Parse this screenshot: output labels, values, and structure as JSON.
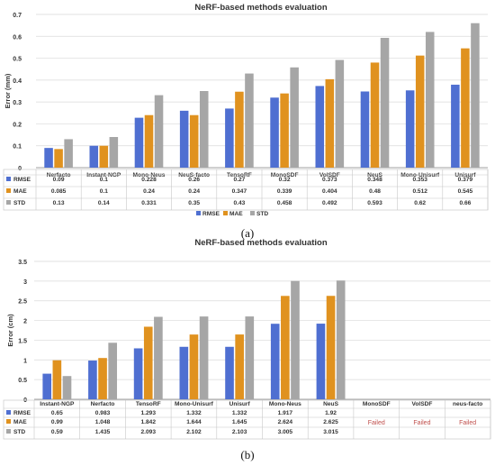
{
  "colors": {
    "RMSE": "#4f6fd1",
    "MAE": "#e0921f",
    "STD": "#a6a6a6",
    "failed": "#c0504d",
    "grid": "#d9d9d9",
    "axis": "#808080"
  },
  "captions": {
    "a": "(a)",
    "b": "(b)"
  },
  "chart_data": [
    {
      "type": "bar",
      "title": "NeRF-based methods evaluation",
      "ylabel": "Error (mm)",
      "ylim": [
        0,
        0.7
      ],
      "yticks": [
        "0",
        "0.1",
        "0.2",
        "0.3",
        "0.4",
        "0.5",
        "0.6",
        "0.7"
      ],
      "grid": true,
      "legend": "bottom",
      "categories": [
        "Nerfacto",
        "Instant-NGP",
        "Mono-Neus",
        "NeuS-facto",
        "TensoRF",
        "MonoSDF",
        "VolSDF",
        "NeuS",
        "Mono-Unisurf",
        "Unisurf"
      ],
      "series": [
        {
          "name": "RMSE",
          "values": [
            0.09,
            0.1,
            0.228,
            0.26,
            0.27,
            0.32,
            0.373,
            0.348,
            0.353,
            0.379
          ],
          "labels": [
            "0.09",
            "0.1",
            "0.228",
            "0.26",
            "0.27",
            "0.32",
            "0.373",
            "0.348",
            "0.353",
            "0.379"
          ]
        },
        {
          "name": "MAE",
          "values": [
            0.085,
            0.1,
            0.24,
            0.24,
            0.347,
            0.339,
            0.404,
            0.48,
            0.512,
            0.545
          ],
          "labels": [
            "0.085",
            "0.1",
            "0.24",
            "0.24",
            "0.347",
            "0.339",
            "0.404",
            "0.48",
            "0.512",
            "0.545"
          ]
        },
        {
          "name": "STD",
          "values": [
            0.13,
            0.14,
            0.331,
            0.35,
            0.43,
            0.458,
            0.492,
            0.593,
            0.62,
            0.66
          ],
          "labels": [
            "0.13",
            "0.14",
            "0.331",
            "0.35",
            "0.43",
            "0.458",
            "0.492",
            "0.593",
            "0.62",
            "0.66"
          ]
        }
      ]
    },
    {
      "type": "bar",
      "title": "NeRF-based methods evaluation",
      "ylabel": "Error (cm)",
      "ylim": [
        0,
        3.5
      ],
      "yticks": [
        "0",
        "0.5",
        "1",
        "1.5",
        "2",
        "2.5",
        "3",
        "3.5"
      ],
      "grid": true,
      "legend": "table",
      "failed_text": "Failed",
      "categories": [
        "Instant-NGP",
        "Nerfacto",
        "TensoRF",
        "Mono-Unisurf",
        "Unisurf",
        "Mono-Neus",
        "NeuS",
        "MonoSDF",
        "VolSDF",
        "neus-facto"
      ],
      "failed": [
        false,
        false,
        false,
        false,
        false,
        false,
        false,
        true,
        true,
        true
      ],
      "series": [
        {
          "name": "RMSE",
          "values": [
            0.65,
            0.983,
            1.293,
            1.332,
            1.332,
            1.917,
            1.92,
            null,
            null,
            null
          ],
          "labels": [
            "0.65",
            "0.983",
            "1.293",
            "1.332",
            "1.332",
            "1.917",
            "1.92",
            "",
            "",
            ""
          ]
        },
        {
          "name": "MAE",
          "values": [
            0.99,
            1.048,
            1.842,
            1.644,
            1.645,
            2.624,
            2.625,
            null,
            null,
            null
          ],
          "labels": [
            "0.99",
            "1.048",
            "1.842",
            "1.644",
            "1.645",
            "2.624",
            "2.625",
            "",
            "",
            ""
          ]
        },
        {
          "name": "STD",
          "values": [
            0.59,
            1.435,
            2.093,
            2.102,
            2.103,
            3.005,
            3.015,
            null,
            null,
            null
          ],
          "labels": [
            "0.59",
            "1.435",
            "2.093",
            "2.102",
            "2.103",
            "3.005",
            "3.015",
            "",
            "",
            ""
          ]
        }
      ]
    }
  ]
}
